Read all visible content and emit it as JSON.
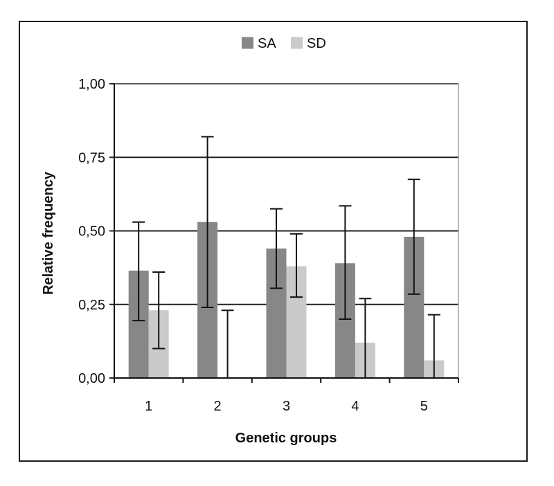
{
  "chart_data": {
    "type": "bar",
    "categories": [
      "1",
      "2",
      "3",
      "4",
      "5"
    ],
    "series": [
      {
        "name": "SA",
        "color": "#878787",
        "values": [
          0.365,
          0.53,
          0.44,
          0.39,
          0.48
        ],
        "error_low": [
          0.195,
          0.24,
          0.305,
          0.2,
          0.285
        ],
        "error_high": [
          0.53,
          0.82,
          0.575,
          0.585,
          0.675
        ]
      },
      {
        "name": "SD",
        "color": "#cacaca",
        "values": [
          0.23,
          0.0,
          0.38,
          0.12,
          0.06
        ],
        "error_low": [
          0.1,
          0.0,
          0.275,
          0.0,
          0.0
        ],
        "error_high": [
          0.36,
          0.23,
          0.49,
          0.27,
          0.215
        ]
      }
    ],
    "xlabel": "Genetic groups",
    "ylabel": "Relative frequency",
    "ylim": [
      0,
      1
    ],
    "yticks": [
      "0,00",
      "0,25",
      "0,50",
      "0,75",
      "1,00"
    ],
    "ytick_values": [
      0,
      0.25,
      0.5,
      0.75,
      1.0
    ],
    "grid": true,
    "legend_position": "top-center"
  }
}
